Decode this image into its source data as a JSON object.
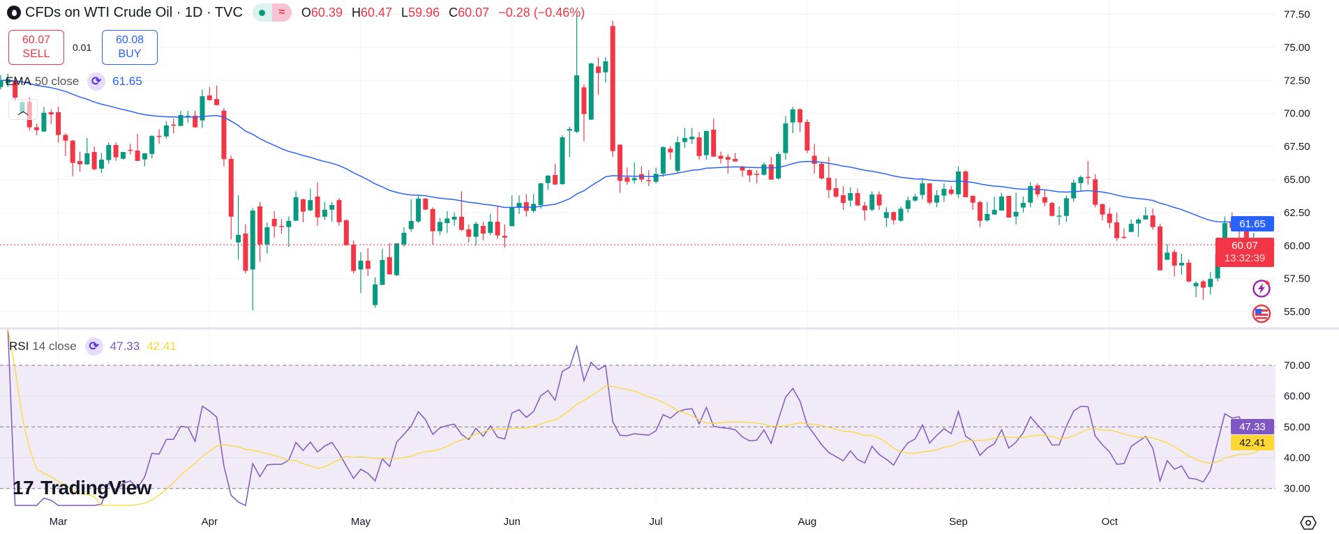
{
  "header": {
    "title": "CFDs on WTI Crude Oil · 1D · TVC",
    "status_icons": [
      "market-open-dot-icon",
      "delayed-data-icon"
    ],
    "delayed_symbol": "≈",
    "ohlc": {
      "o_label": "O",
      "o": "60.39",
      "h_label": "H",
      "h": "60.47",
      "l_label": "L",
      "l": "59.96",
      "c_label": "C",
      "c": "60.07",
      "change": "−0.28 (−0.46%)"
    }
  },
  "trade": {
    "sell_price": "60.07",
    "sell_label": "SELL",
    "spread": "0.01",
    "buy_price": "60.08",
    "buy_label": "BUY"
  },
  "ema_legend": {
    "name": "EMA",
    "params": "50 close",
    "value": "61.65"
  },
  "rsi_legend": {
    "name": "RSI",
    "params": "14 close",
    "value": "47.33",
    "ma_value": "42.41"
  },
  "price_labels": {
    "ema": "61.65",
    "last": "60.07",
    "countdown": "13:32:39",
    "rsi": "47.33",
    "rsi_ma": "42.41"
  },
  "branding": {
    "logo_text": "TradingView"
  },
  "colors": {
    "up": "#089981",
    "down": "#f23645",
    "ema": "#2962ff",
    "rsi": "#7e57c2",
    "rsi_ma": "#fdd835",
    "rsi_band": "#ede7f6"
  },
  "chart_data": [
    {
      "type": "candlestick",
      "symbol": "CFDs on WTI Crude Oil",
      "interval": "1D",
      "ylim": [
        53.74,
        78.58
      ],
      "y_ticks": [
        "55.00",
        "57.50",
        "60.00",
        "62.50",
        "65.00",
        "67.50",
        "70.00",
        "72.50",
        "75.00",
        "77.50"
      ],
      "x_ticks": [
        {
          "label": "Mar",
          "bar": 8
        },
        {
          "label": "Apr",
          "bar": 29
        },
        {
          "label": "May",
          "bar": 50
        },
        {
          "label": "Jun",
          "bar": 71
        },
        {
          "label": "Jul",
          "bar": 91
        },
        {
          "label": "Aug",
          "bar": 112
        },
        {
          "label": "Sep",
          "bar": 133
        },
        {
          "label": "Oct",
          "bar": 154
        }
      ],
      "overlay": {
        "type": "EMA",
        "length": 50,
        "source": "close",
        "last": 61.65
      },
      "ohlc": [
        [
          72.0,
          72.9,
          71.8,
          72.5
        ],
        [
          72.3,
          73.0,
          72.0,
          72.6
        ],
        [
          72.5,
          72.8,
          70.9,
          71.2
        ],
        [
          70.05,
          71.0,
          69.9,
          70.84
        ],
        [
          70.88,
          71.2,
          68.7,
          68.95
        ],
        [
          68.95,
          69.24,
          68.35,
          68.73
        ],
        [
          68.63,
          70.5,
          68.6,
          70.05
        ],
        [
          70.09,
          70.3,
          69.2,
          69.92
        ],
        [
          70.09,
          70.5,
          67.8,
          68.37
        ],
        [
          68.37,
          68.5,
          66.77,
          67.94
        ],
        [
          67.94,
          68.0,
          65.25,
          66.26
        ],
        [
          66.4,
          67.1,
          65.6,
          66.15
        ],
        [
          66.15,
          68.14,
          66.1,
          66.98
        ],
        [
          67.08,
          67.5,
          65.7,
          65.78
        ],
        [
          65.82,
          67.0,
          65.5,
          66.5
        ],
        [
          66.47,
          67.8,
          66.2,
          67.61
        ],
        [
          67.61,
          67.8,
          66.4,
          66.68
        ],
        [
          66.57,
          67.08,
          66.5,
          67.08
        ],
        [
          67.25,
          67.7,
          66.9,
          67.2
        ],
        [
          67.19,
          68.46,
          66.4,
          66.41
        ],
        [
          66.52,
          67.0,
          66.0,
          66.98
        ],
        [
          66.94,
          68.35,
          66.6,
          68.29
        ],
        [
          68.3,
          68.8,
          67.7,
          68.22
        ],
        [
          68.26,
          69.4,
          68.1,
          69.09
        ],
        [
          69.15,
          69.6,
          68.5,
          69.1
        ],
        [
          69.05,
          70.2,
          69.05,
          69.88
        ],
        [
          69.78,
          70.2,
          69.3,
          69.83
        ],
        [
          69.83,
          70.2,
          68.9,
          68.95
        ],
        [
          69.47,
          71.8,
          68.9,
          71.3
        ],
        [
          71.36,
          72.0,
          71.0,
          71.0
        ],
        [
          71.09,
          72.1,
          70.6,
          70.63
        ],
        [
          70.2,
          70.4,
          66.0,
          66.54
        ],
        [
          66.56,
          66.8,
          60.47,
          62.19
        ],
        [
          60.24,
          63.8,
          58.93,
          60.81
        ],
        [
          60.91,
          61.6,
          57.9,
          58.1
        ],
        [
          58.19,
          62.85,
          55.09,
          62.65
        ],
        [
          62.97,
          63.3,
          58.75,
          60.09
        ],
        [
          60.09,
          61.75,
          59.4,
          61.39
        ],
        [
          62.02,
          62.6,
          60.6,
          61.46
        ],
        [
          61.48,
          62.0,
          60.9,
          61.46
        ],
        [
          61.4,
          62.2,
          59.9,
          61.86
        ],
        [
          61.88,
          64.1,
          61.88,
          63.66
        ],
        [
          63.5,
          63.55,
          61.75,
          62.57
        ],
        [
          62.67,
          64.3,
          62.6,
          63.44
        ],
        [
          63.71,
          64.8,
          61.5,
          62.14
        ],
        [
          62.19,
          63.3,
          61.95,
          62.71
        ],
        [
          62.72,
          63.3,
          61.8,
          63.07
        ],
        [
          63.44,
          63.6,
          61.5,
          61.77
        ],
        [
          61.91,
          62.0,
          60.0,
          60.03
        ],
        [
          60.07,
          60.4,
          57.9,
          58.08
        ],
        [
          58.19,
          59.5,
          56.4,
          58.86
        ],
        [
          58.86,
          59.8,
          57.7,
          58.24
        ],
        [
          55.5,
          57.6,
          55.3,
          57.06
        ],
        [
          57.03,
          59.75,
          57.0,
          58.91
        ],
        [
          59.12,
          60.2,
          57.8,
          57.82
        ],
        [
          57.76,
          60.17,
          57.7,
          60.17
        ],
        [
          60.09,
          61.4,
          59.9,
          60.97
        ],
        [
          61.25,
          63.5,
          61.05,
          61.86
        ],
        [
          61.83,
          63.8,
          61.7,
          63.55
        ],
        [
          63.55,
          63.6,
          62.7,
          62.72
        ],
        [
          62.76,
          62.9,
          60.05,
          61.09
        ],
        [
          61.09,
          62.1,
          60.8,
          61.79
        ],
        [
          61.7,
          62.6,
          60.95,
          62.05
        ],
        [
          61.97,
          62.5,
          61.5,
          62.18
        ],
        [
          62.18,
          64.1,
          61.1,
          61.19
        ],
        [
          61.23,
          61.6,
          60.25,
          60.67
        ],
        [
          60.67,
          61.8,
          60.0,
          61.65
        ],
        [
          61.49,
          61.8,
          60.4,
          60.91
        ],
        [
          60.96,
          62.4,
          60.8,
          61.81
        ],
        [
          61.81,
          63.0,
          60.5,
          60.77
        ],
        [
          60.74,
          61.6,
          59.85,
          60.61
        ],
        [
          61.47,
          63.8,
          61.47,
          62.9
        ],
        [
          62.9,
          63.8,
          62.4,
          63.23
        ],
        [
          63.28,
          63.9,
          62.2,
          62.62
        ],
        [
          62.62,
          63.9,
          62.5,
          63.16
        ],
        [
          63.07,
          64.75,
          62.8,
          64.71
        ],
        [
          64.73,
          65.35,
          64.2,
          65.29
        ],
        [
          65.34,
          66.2,
          64.6,
          64.62
        ],
        [
          64.65,
          68.35,
          64.6,
          68.19
        ],
        [
          68.7,
          68.98,
          66.7,
          68.82
        ],
        [
          68.61,
          77.6,
          68.5,
          72.88
        ],
        [
          71.97,
          72.2,
          67.9,
          69.95
        ],
        [
          69.53,
          73.83,
          69.5,
          73.78
        ],
        [
          73.55,
          74.25,
          71.4,
          73.06
        ],
        [
          73.11,
          74.25,
          72.35,
          73.94
        ],
        [
          76.61,
          77.0,
          66.7,
          67.15
        ],
        [
          67.64,
          67.64,
          63.99,
          64.9
        ],
        [
          65.17,
          65.9,
          64.6,
          64.83
        ],
        [
          64.94,
          66.3,
          64.7,
          65.11
        ],
        [
          65.4,
          66.0,
          64.8,
          65.0
        ],
        [
          64.95,
          65.7,
          64.5,
          64.92
        ],
        [
          64.83,
          65.9,
          64.7,
          65.43
        ],
        [
          65.45,
          67.5,
          65.2,
          67.45
        ],
        [
          67.33,
          67.5,
          66.5,
          67.05
        ],
        [
          65.66,
          68.25,
          65.5,
          67.82
        ],
        [
          67.84,
          68.9,
          67.4,
          68.14
        ],
        [
          68.05,
          68.9,
          67.7,
          68.24
        ],
        [
          68.19,
          68.6,
          66.5,
          66.78
        ],
        [
          66.84,
          68.7,
          66.5,
          68.67
        ],
        [
          68.77,
          69.6,
          66.73,
          66.73
        ],
        [
          66.8,
          67.1,
          66.2,
          66.57
        ],
        [
          66.7,
          66.9,
          65.45,
          66.5
        ],
        [
          66.56,
          67.0,
          66.36,
          66.36
        ],
        [
          65.96,
          66.05,
          65.2,
          65.68
        ],
        [
          65.71,
          65.8,
          64.8,
          65.31
        ],
        [
          65.43,
          65.7,
          64.7,
          65.37
        ],
        [
          65.36,
          66.3,
          65.3,
          66.13
        ],
        [
          66.13,
          66.7,
          64.99,
          64.99
        ],
        [
          65.08,
          67.1,
          65.0,
          66.93
        ],
        [
          67.0,
          69.8,
          66.5,
          69.24
        ],
        [
          69.32,
          70.5,
          68.5,
          70.3
        ],
        [
          70.3,
          70.4,
          68.6,
          69.32
        ],
        [
          69.35,
          69.55,
          67.0,
          67.19
        ],
        [
          66.8,
          67.7,
          65.45,
          66.19
        ],
        [
          66.19,
          66.3,
          65.0,
          65.08
        ],
        [
          65.13,
          66.7,
          63.6,
          64.2
        ],
        [
          64.34,
          65.1,
          63.6,
          63.71
        ],
        [
          63.81,
          64.5,
          62.7,
          63.23
        ],
        [
          63.41,
          64.4,
          62.95,
          63.97
        ],
        [
          63.97,
          64.3,
          63.0,
          63.04
        ],
        [
          63.02,
          63.3,
          61.9,
          62.67
        ],
        [
          62.72,
          64.1,
          62.6,
          63.87
        ],
        [
          63.87,
          64.1,
          62.7,
          63.04
        ],
        [
          62.09,
          62.9,
          61.4,
          62.53
        ],
        [
          62.53,
          62.6,
          61.6,
          61.93
        ],
        [
          61.88,
          62.95,
          61.8,
          62.79
        ],
        [
          62.78,
          63.7,
          62.5,
          63.43
        ],
        [
          63.41,
          63.9,
          63.3,
          63.71
        ],
        [
          63.83,
          65.1,
          63.5,
          64.71
        ],
        [
          64.71,
          64.71,
          63.1,
          63.25
        ],
        [
          63.25,
          64.2,
          62.9,
          63.81
        ],
        [
          63.78,
          64.7,
          63.3,
          64.29
        ],
        [
          64.24,
          64.5,
          63.8,
          63.92
        ],
        [
          63.88,
          66.0,
          63.6,
          65.61
        ],
        [
          65.61,
          65.7,
          63.66,
          63.66
        ],
        [
          63.76,
          63.8,
          62.7,
          63.25
        ],
        [
          63.29,
          63.4,
          61.4,
          61.88
        ],
        [
          61.91,
          63.3,
          61.8,
          62.39
        ],
        [
          62.35,
          63.7,
          62.35,
          62.7
        ],
        [
          62.65,
          64.0,
          62.65,
          63.71
        ],
        [
          63.76,
          63.76,
          62.12,
          62.12
        ],
        [
          62.2,
          64.0,
          61.6,
          62.55
        ],
        [
          62.88,
          63.7,
          62.5,
          63.23
        ],
        [
          63.25,
          64.8,
          62.9,
          64.5
        ],
        [
          64.55,
          64.7,
          63.66,
          63.88
        ],
        [
          63.66,
          64.2,
          62.98,
          63.25
        ],
        [
          63.23,
          63.3,
          62.2,
          62.25
        ],
        [
          62.2,
          62.98,
          61.56,
          62.27
        ],
        [
          62.25,
          63.8,
          61.8,
          63.58
        ],
        [
          63.57,
          65.0,
          63.3,
          64.76
        ],
        [
          64.73,
          65.3,
          64.1,
          65.18
        ],
        [
          65.2,
          66.4,
          64.6,
          65.15
        ],
        [
          65.01,
          65.4,
          62.9,
          63.09
        ],
        [
          63.13,
          63.2,
          61.9,
          62.35
        ],
        [
          62.42,
          62.85,
          61.3,
          61.72
        ],
        [
          61.76,
          62.5,
          60.35,
          60.56
        ],
        [
          60.66,
          61.3,
          60.5,
          60.6
        ],
        [
          61.03,
          61.98,
          61.03,
          61.65
        ],
        [
          61.67,
          62.1,
          60.65,
          61.97
        ],
        [
          61.98,
          62.9,
          61.98,
          62.28
        ],
        [
          62.28,
          62.8,
          61.2,
          61.4
        ],
        [
          61.44,
          61.65,
          58.13,
          58.13
        ],
        [
          58.93,
          60.1,
          58.93,
          59.47
        ],
        [
          59.52,
          59.7,
          57.65,
          58.49
        ],
        [
          58.5,
          59.4,
          57.8,
          58.7
        ],
        [
          58.7,
          58.95,
          57.2,
          57.29
        ],
        [
          56.92,
          57.3,
          56.1,
          57.17
        ],
        [
          57.29,
          57.4,
          55.9,
          56.82
        ],
        [
          56.87,
          58.0,
          56.3,
          57.48
        ],
        [
          57.52,
          59.8,
          57.3,
          59.33
        ],
        [
          59.87,
          62.2,
          59.6,
          61.7
        ],
        [
          61.76,
          62.5,
          61.2,
          61.35
        ],
        [
          61.76,
          62.1,
          60.3,
          61.46
        ],
        [
          61.44,
          61.44,
          59.8,
          60.09
        ],
        [
          60.09,
          60.97,
          59.7,
          60.35
        ],
        [
          60.39,
          60.47,
          59.96,
          60.07
        ]
      ]
    },
    {
      "type": "line",
      "indicator": "RSI",
      "length": 14,
      "source": "close",
      "ylim": [
        24.5,
        82
      ],
      "y_ticks": [
        "30.00",
        "40.00",
        "50.00",
        "60.00",
        "70.00"
      ],
      "bands": {
        "upper": 70,
        "middle": 50,
        "lower": 30
      },
      "last_rsi": 47.33,
      "last_ma": 42.41
    }
  ]
}
